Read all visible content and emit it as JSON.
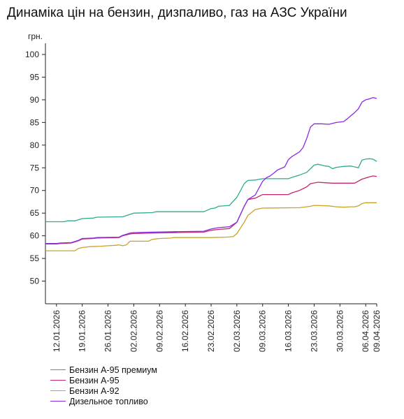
{
  "chart_data": {
    "type": "line",
    "title": "Динаміка цін на бензин, дизпаливо, газ на АЗС України",
    "ylabel": "грн.",
    "ylim": [
      45,
      100
    ],
    "yticks": [
      50,
      55,
      60,
      65,
      70,
      75,
      80,
      85,
      90,
      95,
      100
    ],
    "x_start": "2026-01-09",
    "x_end": "2026-04-09",
    "xticks": [
      "12.01.2026",
      "19.01.2026",
      "26.01.2026",
      "02.02.2026",
      "09.02.2026",
      "16.02.2026",
      "23.02.2026",
      "02.03.2026",
      "09.03.2026",
      "16.03.2026",
      "23.03.2026",
      "30.03.2026",
      "06.04.2026",
      "09.04.2026"
    ],
    "xtick_dates": [
      "2026-01-12",
      "2026-01-19",
      "2026-01-26",
      "2026-02-02",
      "2026-02-09",
      "2026-02-16",
      "2026-02-23",
      "2026-03-02",
      "2026-03-09",
      "2026-03-16",
      "2026-03-23",
      "2026-03-30",
      "2026-04-06",
      "2026-04-09"
    ],
    "legend_position": "bottom-left",
    "grid": false,
    "series": [
      {
        "name": "Бензин А-95 премиум",
        "color": "#2eab8e",
        "points": [
          [
            "2026-01-09",
            63.1
          ],
          [
            "2026-01-14",
            63.1
          ],
          [
            "2026-01-15",
            63.3
          ],
          [
            "2026-01-17",
            63.3
          ],
          [
            "2026-01-19",
            63.8
          ],
          [
            "2026-01-22",
            63.9
          ],
          [
            "2026-01-23",
            64.1
          ],
          [
            "2026-01-30",
            64.2
          ],
          [
            "2026-02-02",
            65.0
          ],
          [
            "2026-02-07",
            65.1
          ],
          [
            "2026-02-08",
            65.3
          ],
          [
            "2026-02-13",
            65.3
          ],
          [
            "2026-02-21",
            65.3
          ],
          [
            "2026-02-23",
            66.0
          ],
          [
            "2026-02-24",
            66.1
          ],
          [
            "2026-02-25",
            66.5
          ],
          [
            "2026-02-28",
            66.7
          ],
          [
            "2026-03-02",
            68.5
          ],
          [
            "2026-03-04",
            71.5
          ],
          [
            "2026-03-05",
            72.2
          ],
          [
            "2026-03-07",
            72.3
          ],
          [
            "2026-03-09",
            72.6
          ],
          [
            "2026-03-16",
            72.6
          ],
          [
            "2026-03-17",
            72.9
          ],
          [
            "2026-03-19",
            73.4
          ],
          [
            "2026-03-21",
            74.0
          ],
          [
            "2026-03-22",
            74.8
          ],
          [
            "2026-03-23",
            75.6
          ],
          [
            "2026-03-24",
            75.8
          ],
          [
            "2026-03-26",
            75.4
          ],
          [
            "2026-03-27",
            75.3
          ],
          [
            "2026-03-28",
            74.8
          ],
          [
            "2026-03-29",
            75.1
          ],
          [
            "2026-03-31",
            75.3
          ],
          [
            "2026-04-02",
            75.4
          ],
          [
            "2026-04-04",
            75.0
          ],
          [
            "2026-04-05",
            76.7
          ],
          [
            "2026-04-06",
            76.9
          ],
          [
            "2026-04-07",
            77.0
          ],
          [
            "2026-04-08",
            76.9
          ],
          [
            "2026-04-09",
            76.4
          ]
        ]
      },
      {
        "name": "Бензин А-95",
        "color": "#c6266b",
        "points": [
          [
            "2026-01-09",
            58.2
          ],
          [
            "2026-01-12",
            58.2
          ],
          [
            "2026-01-13",
            58.3
          ],
          [
            "2026-01-16",
            58.4
          ],
          [
            "2026-01-18",
            58.9
          ],
          [
            "2026-01-19",
            59.3
          ],
          [
            "2026-01-22",
            59.4
          ],
          [
            "2026-01-23",
            59.5
          ],
          [
            "2026-01-29",
            59.6
          ],
          [
            "2026-01-30",
            60.0
          ],
          [
            "2026-02-01",
            60.4
          ],
          [
            "2026-02-02",
            60.5
          ],
          [
            "2026-02-07",
            60.6
          ],
          [
            "2026-02-13",
            60.7
          ],
          [
            "2026-02-21",
            60.8
          ],
          [
            "2026-02-23",
            61.2
          ],
          [
            "2026-02-25",
            61.4
          ],
          [
            "2026-02-28",
            61.6
          ],
          [
            "2026-03-02",
            63.0
          ],
          [
            "2026-03-04",
            66.5
          ],
          [
            "2026-03-05",
            68.0
          ],
          [
            "2026-03-07",
            68.3
          ],
          [
            "2026-03-09",
            69.1
          ],
          [
            "2026-03-16",
            69.1
          ],
          [
            "2026-03-17",
            69.5
          ],
          [
            "2026-03-19",
            70.0
          ],
          [
            "2026-03-21",
            70.8
          ],
          [
            "2026-03-22",
            71.5
          ],
          [
            "2026-03-24",
            71.8
          ],
          [
            "2026-03-26",
            71.7
          ],
          [
            "2026-03-28",
            71.6
          ],
          [
            "2026-04-03",
            71.6
          ],
          [
            "2026-04-05",
            72.5
          ],
          [
            "2026-04-07",
            73.0
          ],
          [
            "2026-04-08",
            73.2
          ],
          [
            "2026-04-09",
            73.1
          ]
        ]
      },
      {
        "name": "Бензин А-92",
        "color": "#c9a227",
        "points": [
          [
            "2026-01-09",
            56.7
          ],
          [
            "2026-01-17",
            56.7
          ],
          [
            "2026-01-18",
            57.2
          ],
          [
            "2026-01-19",
            57.4
          ],
          [
            "2026-01-21",
            57.6
          ],
          [
            "2026-01-24",
            57.7
          ],
          [
            "2026-01-26",
            57.8
          ],
          [
            "2026-01-28",
            57.9
          ],
          [
            "2026-01-29",
            58.0
          ],
          [
            "2026-01-30",
            57.8
          ],
          [
            "2026-01-31",
            58.0
          ],
          [
            "2026-02-01",
            58.8
          ],
          [
            "2026-02-06",
            58.8
          ],
          [
            "2026-02-07",
            59.2
          ],
          [
            "2026-02-09",
            59.4
          ],
          [
            "2026-02-12",
            59.5
          ],
          [
            "2026-02-13",
            59.6
          ],
          [
            "2026-02-23",
            59.6
          ],
          [
            "2026-02-27",
            59.7
          ],
          [
            "2026-03-01",
            59.8
          ],
          [
            "2026-03-02",
            60.5
          ],
          [
            "2026-03-04",
            63.0
          ],
          [
            "2026-03-05",
            64.5
          ],
          [
            "2026-03-07",
            65.8
          ],
          [
            "2026-03-09",
            66.1
          ],
          [
            "2026-03-19",
            66.2
          ],
          [
            "2026-03-21",
            66.4
          ],
          [
            "2026-03-22",
            66.5
          ],
          [
            "2026-03-23",
            66.7
          ],
          [
            "2026-03-27",
            66.6
          ],
          [
            "2026-03-29",
            66.4
          ],
          [
            "2026-03-31",
            66.3
          ],
          [
            "2026-04-02",
            66.4
          ],
          [
            "2026-04-03",
            66.4
          ],
          [
            "2026-04-04",
            66.6
          ],
          [
            "2026-04-05",
            67.1
          ],
          [
            "2026-04-06",
            67.3
          ],
          [
            "2026-04-09",
            67.3
          ]
        ]
      },
      {
        "name": "Дизельное топливо",
        "color": "#8a2be2",
        "points": [
          [
            "2026-01-09",
            58.3
          ],
          [
            "2026-01-12",
            58.3
          ],
          [
            "2026-01-13",
            58.4
          ],
          [
            "2026-01-16",
            58.5
          ],
          [
            "2026-01-18",
            59.0
          ],
          [
            "2026-01-19",
            59.4
          ],
          [
            "2026-01-22",
            59.5
          ],
          [
            "2026-01-23",
            59.6
          ],
          [
            "2026-01-29",
            59.7
          ],
          [
            "2026-01-30",
            60.1
          ],
          [
            "2026-02-01",
            60.6
          ],
          [
            "2026-02-02",
            60.7
          ],
          [
            "2026-02-07",
            60.8
          ],
          [
            "2026-02-13",
            60.9
          ],
          [
            "2026-02-21",
            61.0
          ],
          [
            "2026-02-23",
            61.5
          ],
          [
            "2026-02-25",
            61.8
          ],
          [
            "2026-02-28",
            62.0
          ],
          [
            "2026-03-02",
            63.0
          ],
          [
            "2026-03-04",
            66.5
          ],
          [
            "2026-03-05",
            68.0
          ],
          [
            "2026-03-07",
            69.0
          ],
          [
            "2026-03-09",
            72.0
          ],
          [
            "2026-03-10",
            72.8
          ],
          [
            "2026-03-11",
            73.2
          ],
          [
            "2026-03-12",
            73.8
          ],
          [
            "2026-03-13",
            74.5
          ],
          [
            "2026-03-15",
            75.2
          ],
          [
            "2026-03-16",
            76.8
          ],
          [
            "2026-03-17",
            77.5
          ],
          [
            "2026-03-18",
            78.0
          ],
          [
            "2026-03-19",
            78.5
          ],
          [
            "2026-03-20",
            79.5
          ],
          [
            "2026-03-21",
            81.5
          ],
          [
            "2026-03-22",
            84.0
          ],
          [
            "2026-03-23",
            84.7
          ],
          [
            "2026-03-25",
            84.7
          ],
          [
            "2026-03-27",
            84.6
          ],
          [
            "2026-03-29",
            85.0
          ],
          [
            "2026-03-31",
            85.2
          ],
          [
            "2026-04-01",
            85.8
          ],
          [
            "2026-04-02",
            86.5
          ],
          [
            "2026-04-03",
            87.2
          ],
          [
            "2026-04-04",
            88.0
          ],
          [
            "2026-04-05",
            89.5
          ],
          [
            "2026-04-06",
            90.0
          ],
          [
            "2026-04-07",
            90.2
          ],
          [
            "2026-04-08",
            90.5
          ],
          [
            "2026-04-09",
            90.3
          ]
        ]
      }
    ]
  }
}
